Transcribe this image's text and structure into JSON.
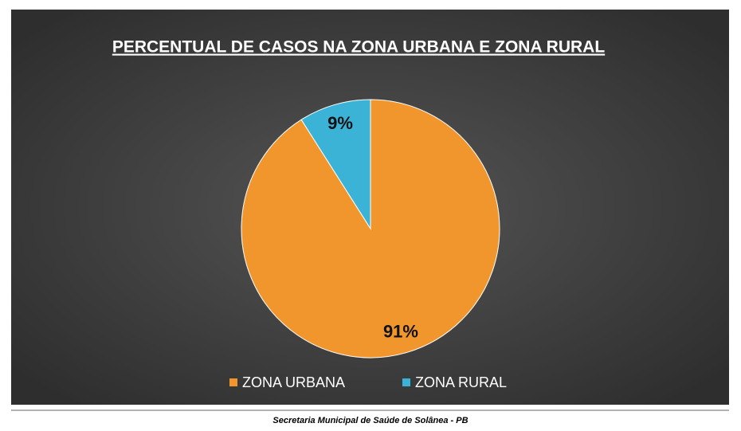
{
  "chart_data": {
    "type": "pie",
    "title": "PERCENTUAL DE CASOS NA ZONA URBANA E ZONA RURAL",
    "categories": [
      "ZONA URBANA",
      "ZONA RURAL"
    ],
    "values": [
      91,
      9
    ],
    "value_labels": [
      "91%",
      "9%"
    ],
    "colors": [
      "#f0962c",
      "#3ab3d6"
    ],
    "legend": "bottom"
  },
  "footer": "Secretaria Municipal de Saúde de Solânea - PB"
}
